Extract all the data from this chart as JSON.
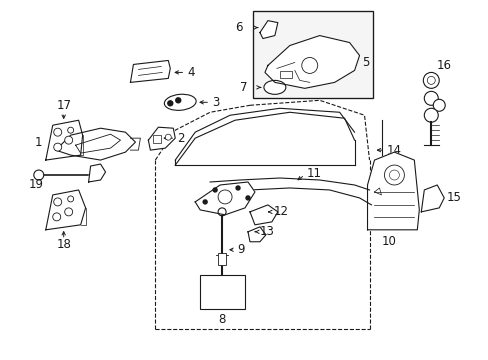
{
  "bg_color": "#ffffff",
  "line_color": "#1a1a1a",
  "figsize": [
    4.89,
    3.6
  ],
  "dpi": 100,
  "font_size": 8.5,
  "lw": 0.8
}
